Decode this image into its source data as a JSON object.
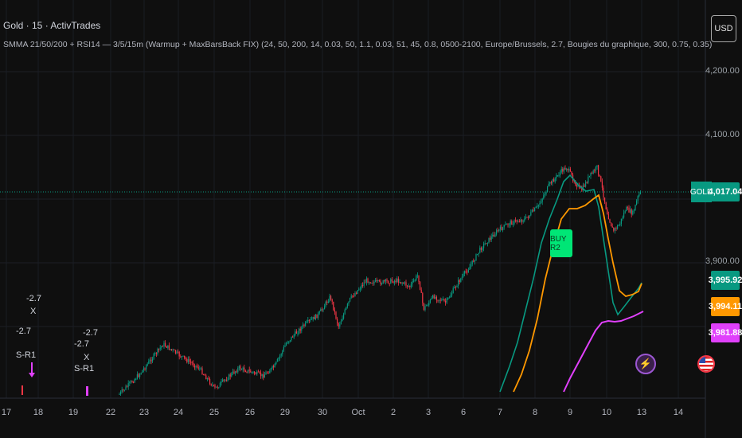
{
  "header": {
    "title": "Gold · 15 · ActivTrades",
    "indicator": "SMMA 21/50/200 + RSI14 — 3/5/15m (Warmup + MaxBarsBack FIX) (24, 50, 200, 14, 0.03, 50, 1.1, 0.03, 51, 45, 0.8, 0500-2100, Europe/Brussels, 2.7, Bougies du graphique, 300, 0.75, 0.35)"
  },
  "currency_button": "USD",
  "price_axis": {
    "labels": [
      "4,200.00",
      "4,100.00",
      "3,900.00"
    ],
    "last_symbol": "GOLD",
    "last_price": "4,017.04",
    "tags": [
      {
        "value": "3,995.92",
        "color": "#089981"
      },
      {
        "value": "3,994.11",
        "color": "#ff9800"
      },
      {
        "value": "3,981.88",
        "color": "#e040fb"
      }
    ]
  },
  "time_axis": [
    "17",
    "18",
    "19",
    "22",
    "23",
    "24",
    "25",
    "26",
    "29",
    "30",
    "Oct",
    "2",
    "3",
    "6",
    "7",
    "8",
    "9",
    "10",
    "13",
    "14"
  ],
  "signals": {
    "buy": "BUY R2",
    "sell_1_value": "-2.7",
    "sell_1_x": "-2.7",
    "sell_1_marker": "X",
    "sell_1_label": "S-R1",
    "sell_2_value": "-2.7",
    "sell_2_x": "-2.7",
    "sell_2_marker": "X",
    "sell_2_label": "S-R1"
  },
  "colors": {
    "background": "#0f0f0f",
    "up": "#089981",
    "down": "#f23645",
    "smma_fast": "#089981",
    "smma_mid": "#ff9800",
    "smma_slow": "#e040fb"
  },
  "icons": [
    "lightning-icon",
    "us-flag-icon"
  ]
}
